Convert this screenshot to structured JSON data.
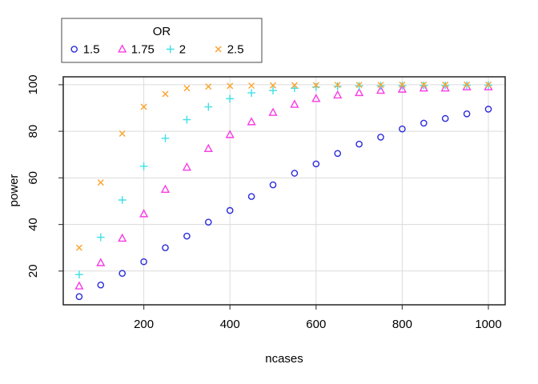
{
  "chart_data": {
    "type": "scatter",
    "title": "",
    "xlabel": "ncases",
    "ylabel": "power",
    "x": [
      50,
      100,
      150,
      200,
      250,
      300,
      350,
      400,
      450,
      500,
      550,
      600,
      650,
      700,
      750,
      800,
      850,
      900,
      950,
      1000
    ],
    "series": [
      {
        "name": "1.5",
        "marker": "circle",
        "color": "#2B2BDD",
        "values": [
          9,
          14,
          19,
          24,
          30,
          35,
          41,
          46,
          52,
          57,
          62,
          66,
          70.5,
          74.5,
          77.5,
          81,
          83.5,
          85.5,
          87.5,
          89.5
        ]
      },
      {
        "name": "1.75",
        "marker": "triangle",
        "color": "#F93CE3",
        "values": [
          13.5,
          23.5,
          34,
          44.5,
          55,
          64.5,
          72.5,
          78.5,
          84,
          88,
          91.5,
          94,
          95.5,
          96.5,
          97.5,
          98,
          98.5,
          98.5,
          99,
          99
        ]
      },
      {
        "name": "2",
        "marker": "plus",
        "color": "#3FE0E6",
        "values": [
          18.5,
          34.5,
          50.5,
          65,
          77,
          85,
          90.5,
          94,
          96.5,
          97.5,
          98.5,
          99,
          99.3,
          99.5,
          99.5,
          99.6,
          99.7,
          99.7,
          99.8,
          99.8
        ]
      },
      {
        "name": "2.5",
        "marker": "x",
        "color": "#FBA22B",
        "values": [
          30,
          58,
          79,
          90.5,
          96,
          98.5,
          99.2,
          99.5,
          99.6,
          99.7,
          99.8,
          99.8,
          99.9,
          99.9,
          99.9,
          100,
          100,
          100,
          100,
          100
        ]
      }
    ],
    "xticks": [
      200,
      400,
      600,
      800,
      1000
    ],
    "yticks": [
      20,
      40,
      60,
      80,
      100
    ],
    "xlim": [
      13,
      1039
    ],
    "ylim": [
      5.5,
      103.4
    ],
    "grid": "on",
    "legend": {
      "title": "OR",
      "position": "top-left"
    },
    "colors": {
      "background": "#ffffff",
      "gridline": "#DCDCDC",
      "box": "#232323",
      "tick": "#4a4a4a",
      "text": "#000000",
      "legend_border": "#4a4a4a"
    }
  }
}
